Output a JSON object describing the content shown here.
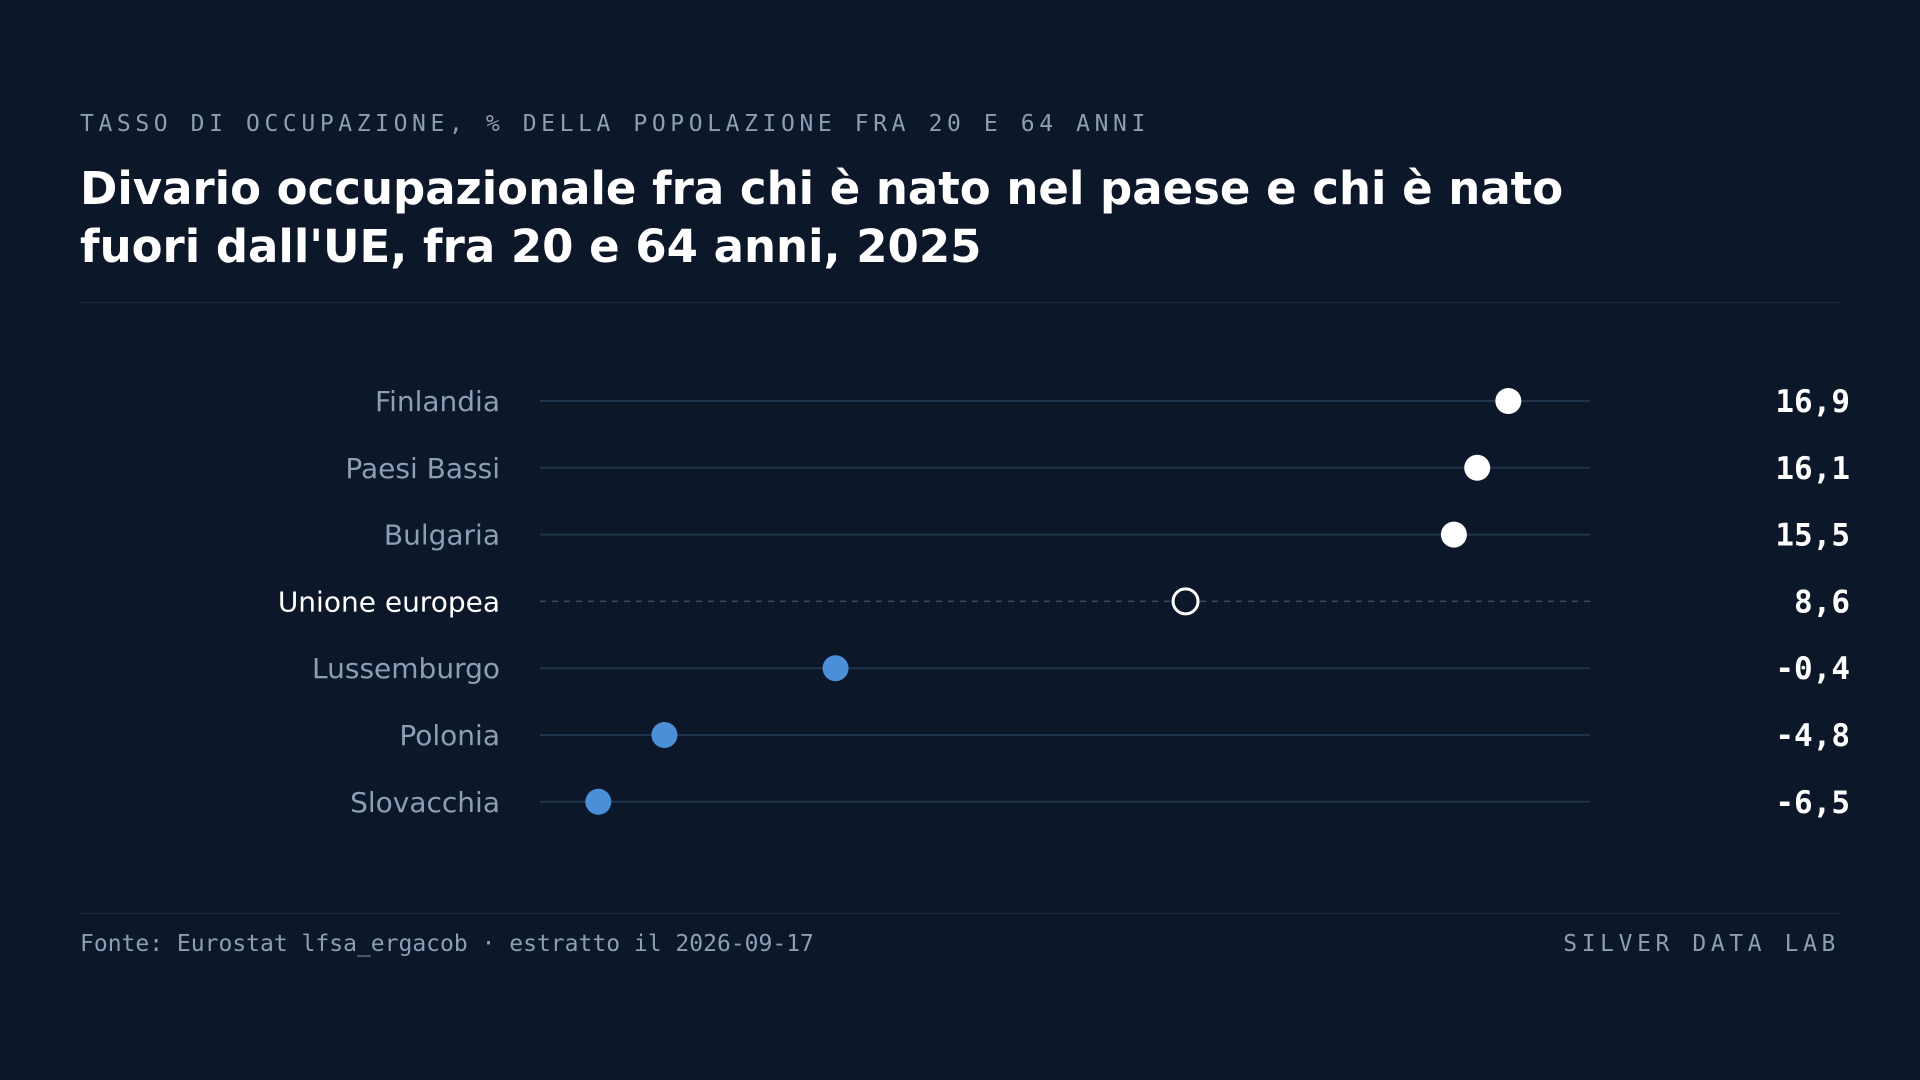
{
  "kicker": "TASSO DI OCCUPAZIONE, % DELLA POPOLAZIONE FRA 20 E 64 ANNI",
  "title": "Divario occupazionale fra chi è nato nel paese e chi è nato fuori dall'UE, fra 20 e 64 anni, 2025",
  "footer": {
    "source": "Fonte: Eurostat lfsa_ergacob · estratto il 2026-09-17",
    "brand": "SILVER DATA LAB"
  },
  "colors": {
    "background": "#0c1829",
    "positive_dot": "#ffffff",
    "negative_dot": "#4a8fd8",
    "reference_dot_stroke": "#ffffff",
    "track": "#22344b",
    "label": "#8c9db5",
    "highlight_label": "#ffffff",
    "value": "#ffffff"
  },
  "chart_data": {
    "type": "scatter",
    "title": "Divario occupazionale fra chi è nato nel paese e chi è nato fuori dall'UE, fra 20 e 64 anni, 2025",
    "subtitle": "TASSO DI OCCUPAZIONE, % DELLA POPOLAZIONE FRA 20 E 64 ANNI",
    "xlabel": "",
    "ylabel": "",
    "xlim": [
      -8,
      19
    ],
    "grid": false,
    "legend": "none",
    "categories": [
      "Finlandia",
      "Paesi Bassi",
      "Bulgaria",
      "Unione europea",
      "Lussemburgo",
      "Polonia",
      "Slovacchia"
    ],
    "values": [
      16.9,
      16.1,
      15.5,
      8.6,
      -0.4,
      -4.8,
      -6.5
    ],
    "value_labels": [
      "16,9",
      "16,1",
      "15,5",
      "8,6",
      "-0,4",
      "-4,8",
      "-6,5"
    ],
    "reference_category": "Unione europea"
  }
}
